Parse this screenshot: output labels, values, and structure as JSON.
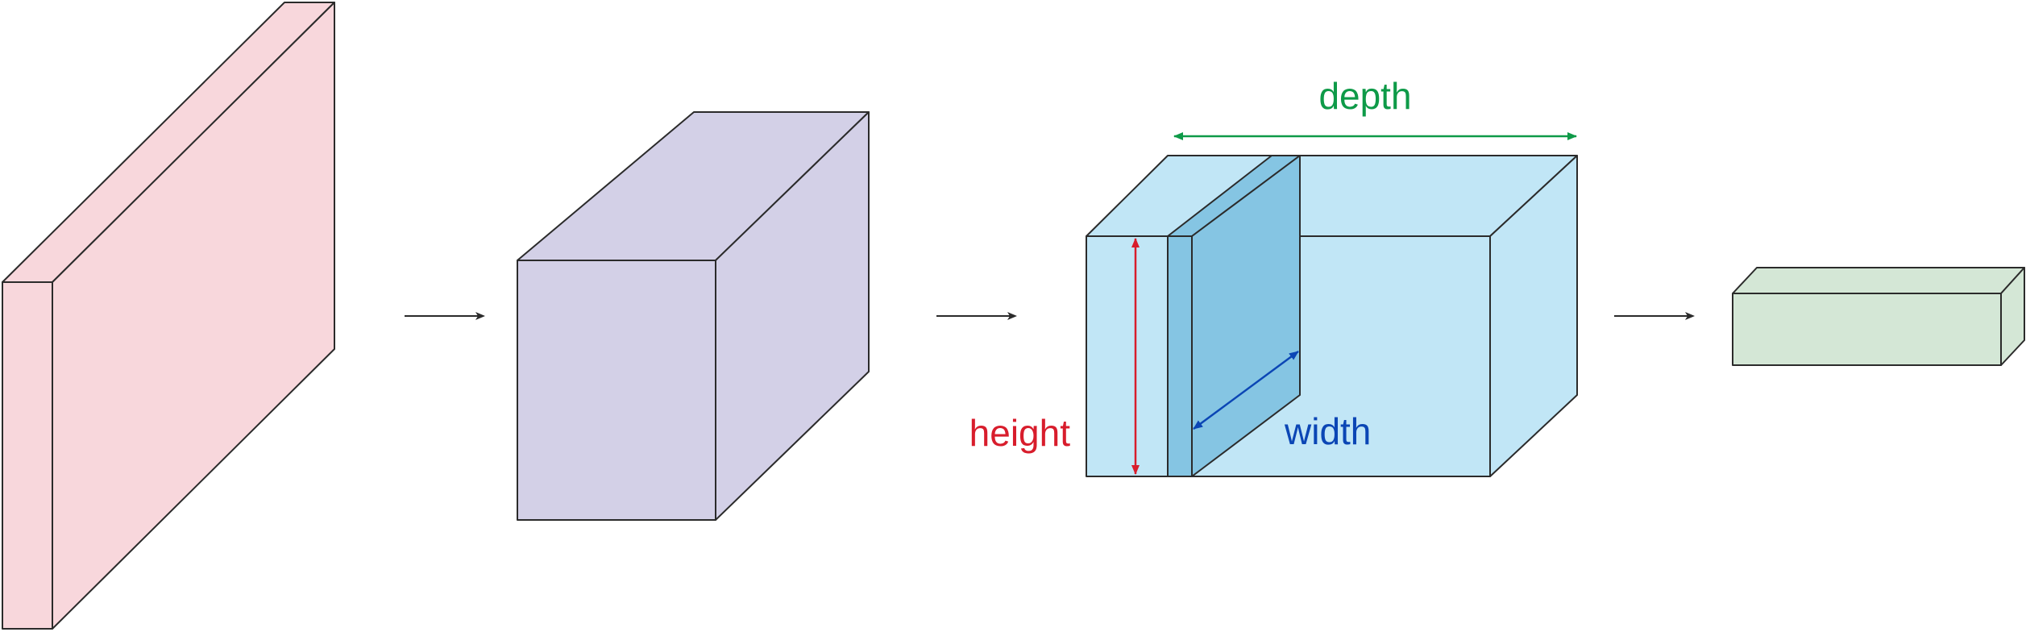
{
  "labels": {
    "depth": "depth",
    "height": "height",
    "width": "width"
  },
  "colors": {
    "input_volume": "#f8d7dc",
    "conv_volume": "#d3d0e7",
    "activation_volume": "#c1e6f6",
    "filter_slice": "#85c5e3",
    "output_volume": "#d4e7d6",
    "depth_arrow": "#0e9a48",
    "height_arrow": "#d81d2c",
    "width_arrow": "#0b46b5",
    "flow_arrow": "#2b2b2b"
  },
  "icons": {
    "flow_arrows": "right-arrow"
  }
}
